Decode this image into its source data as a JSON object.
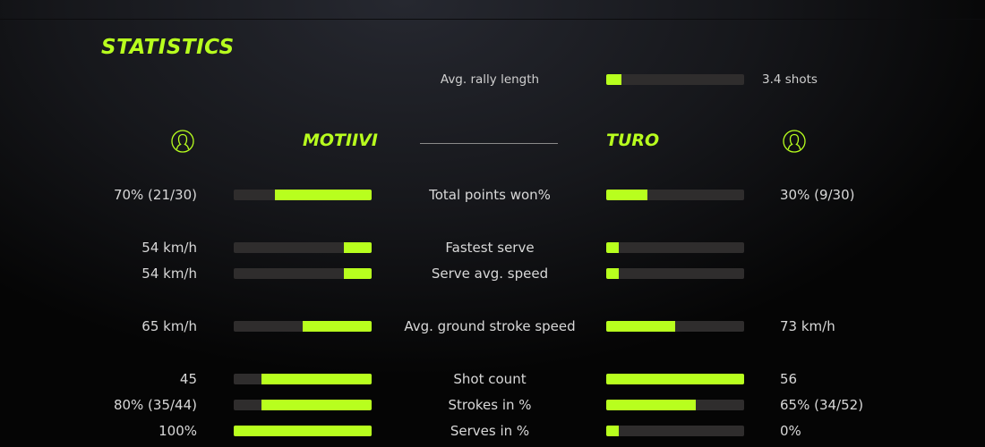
{
  "title": "STATISTICS",
  "accent_color": "#b8ff1e",
  "rally": {
    "label": "Avg. rally length",
    "value": "3.4 shots",
    "fill": 0.11
  },
  "players": {
    "left": {
      "name": "MOTIIVI",
      "icon": "user-circle-icon"
    },
    "right": {
      "name": "TURO",
      "icon": "user-circle-icon"
    }
  },
  "stats": [
    {
      "label": "Total points won%",
      "left": "70% (21/30)",
      "right": "30% (9/30)",
      "left_fill": 0.7,
      "right_fill": 0.3
    },
    {
      "label": "Fastest serve",
      "left": "54 km/h",
      "right": "",
      "left_fill": 0.2,
      "right_fill": 0.09
    },
    {
      "label": "Serve avg. speed",
      "left": "54 km/h",
      "right": "",
      "left_fill": 0.2,
      "right_fill": 0.09
    },
    {
      "label": "Avg. ground stroke speed",
      "left": "65 km/h",
      "right": "73 km/h",
      "left_fill": 0.5,
      "right_fill": 0.5
    },
    {
      "label": "Shot count",
      "left": "45",
      "right": "56",
      "left_fill": 0.8,
      "right_fill": 1.0
    },
    {
      "label": "Strokes in %",
      "left": "80% (35/44)",
      "right": "65% (34/52)",
      "left_fill": 0.8,
      "right_fill": 0.65
    },
    {
      "label": "Serves in %",
      "left": "100%",
      "right": "0%",
      "left_fill": 1.0,
      "right_fill": 0.09
    }
  ]
}
